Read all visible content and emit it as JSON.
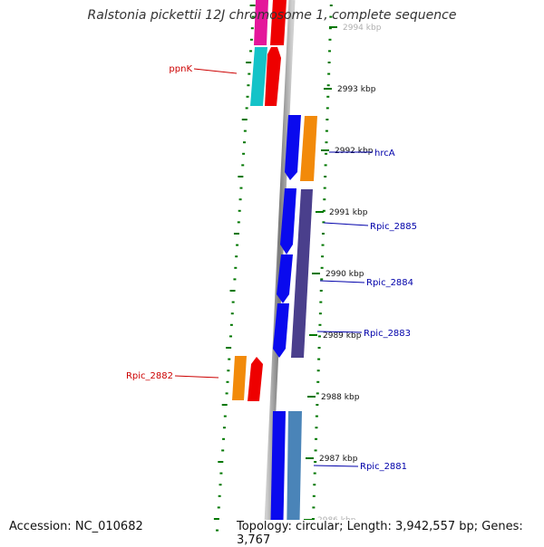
{
  "title": "Ralstonia pickettii 12J chromosome 1, complete sequence",
  "footer": {
    "accession": "Accession: NC_010682",
    "topology": "Topology: circular; Length: 3,942,557 bp; Genes: 3,767"
  },
  "ruler": [
    {
      "label": "2994 kbp",
      "faded": true
    },
    {
      "label": "2993 kbp"
    },
    {
      "label": "2992 kbp"
    },
    {
      "label": "2991 kbp"
    },
    {
      "label": "2990 kbp"
    },
    {
      "label": "2989 kbp"
    },
    {
      "label": "2988 kbp"
    },
    {
      "label": "2987 kbp"
    },
    {
      "label": "2986 kbp",
      "faded": true
    }
  ],
  "gene_labels": [
    {
      "name": "ppnK",
      "color": "#cc0000",
      "side": "left"
    },
    {
      "name": "hrcA",
      "color": "#0000aa",
      "side": "right"
    },
    {
      "name": "Rpic_2885",
      "color": "#0000aa",
      "side": "right"
    },
    {
      "name": "Rpic_2884",
      "color": "#0000aa",
      "side": "right"
    },
    {
      "name": "Rpic_2883",
      "color": "#0000aa",
      "side": "right"
    },
    {
      "name": "Rpic_2882",
      "color": "#cc0000",
      "side": "left"
    },
    {
      "name": "Rpic_2881",
      "color": "#0000aa",
      "side": "right"
    }
  ],
  "colors": {
    "backbone": "#888888",
    "tick": "#007700",
    "magenta": "#e4169a",
    "red": "#ee0000",
    "cyan": "#14c3c8",
    "blue": "#0a0aee",
    "orange": "#f28a0a",
    "purple": "#4a3f8c",
    "steelblue": "#4a84b8"
  }
}
